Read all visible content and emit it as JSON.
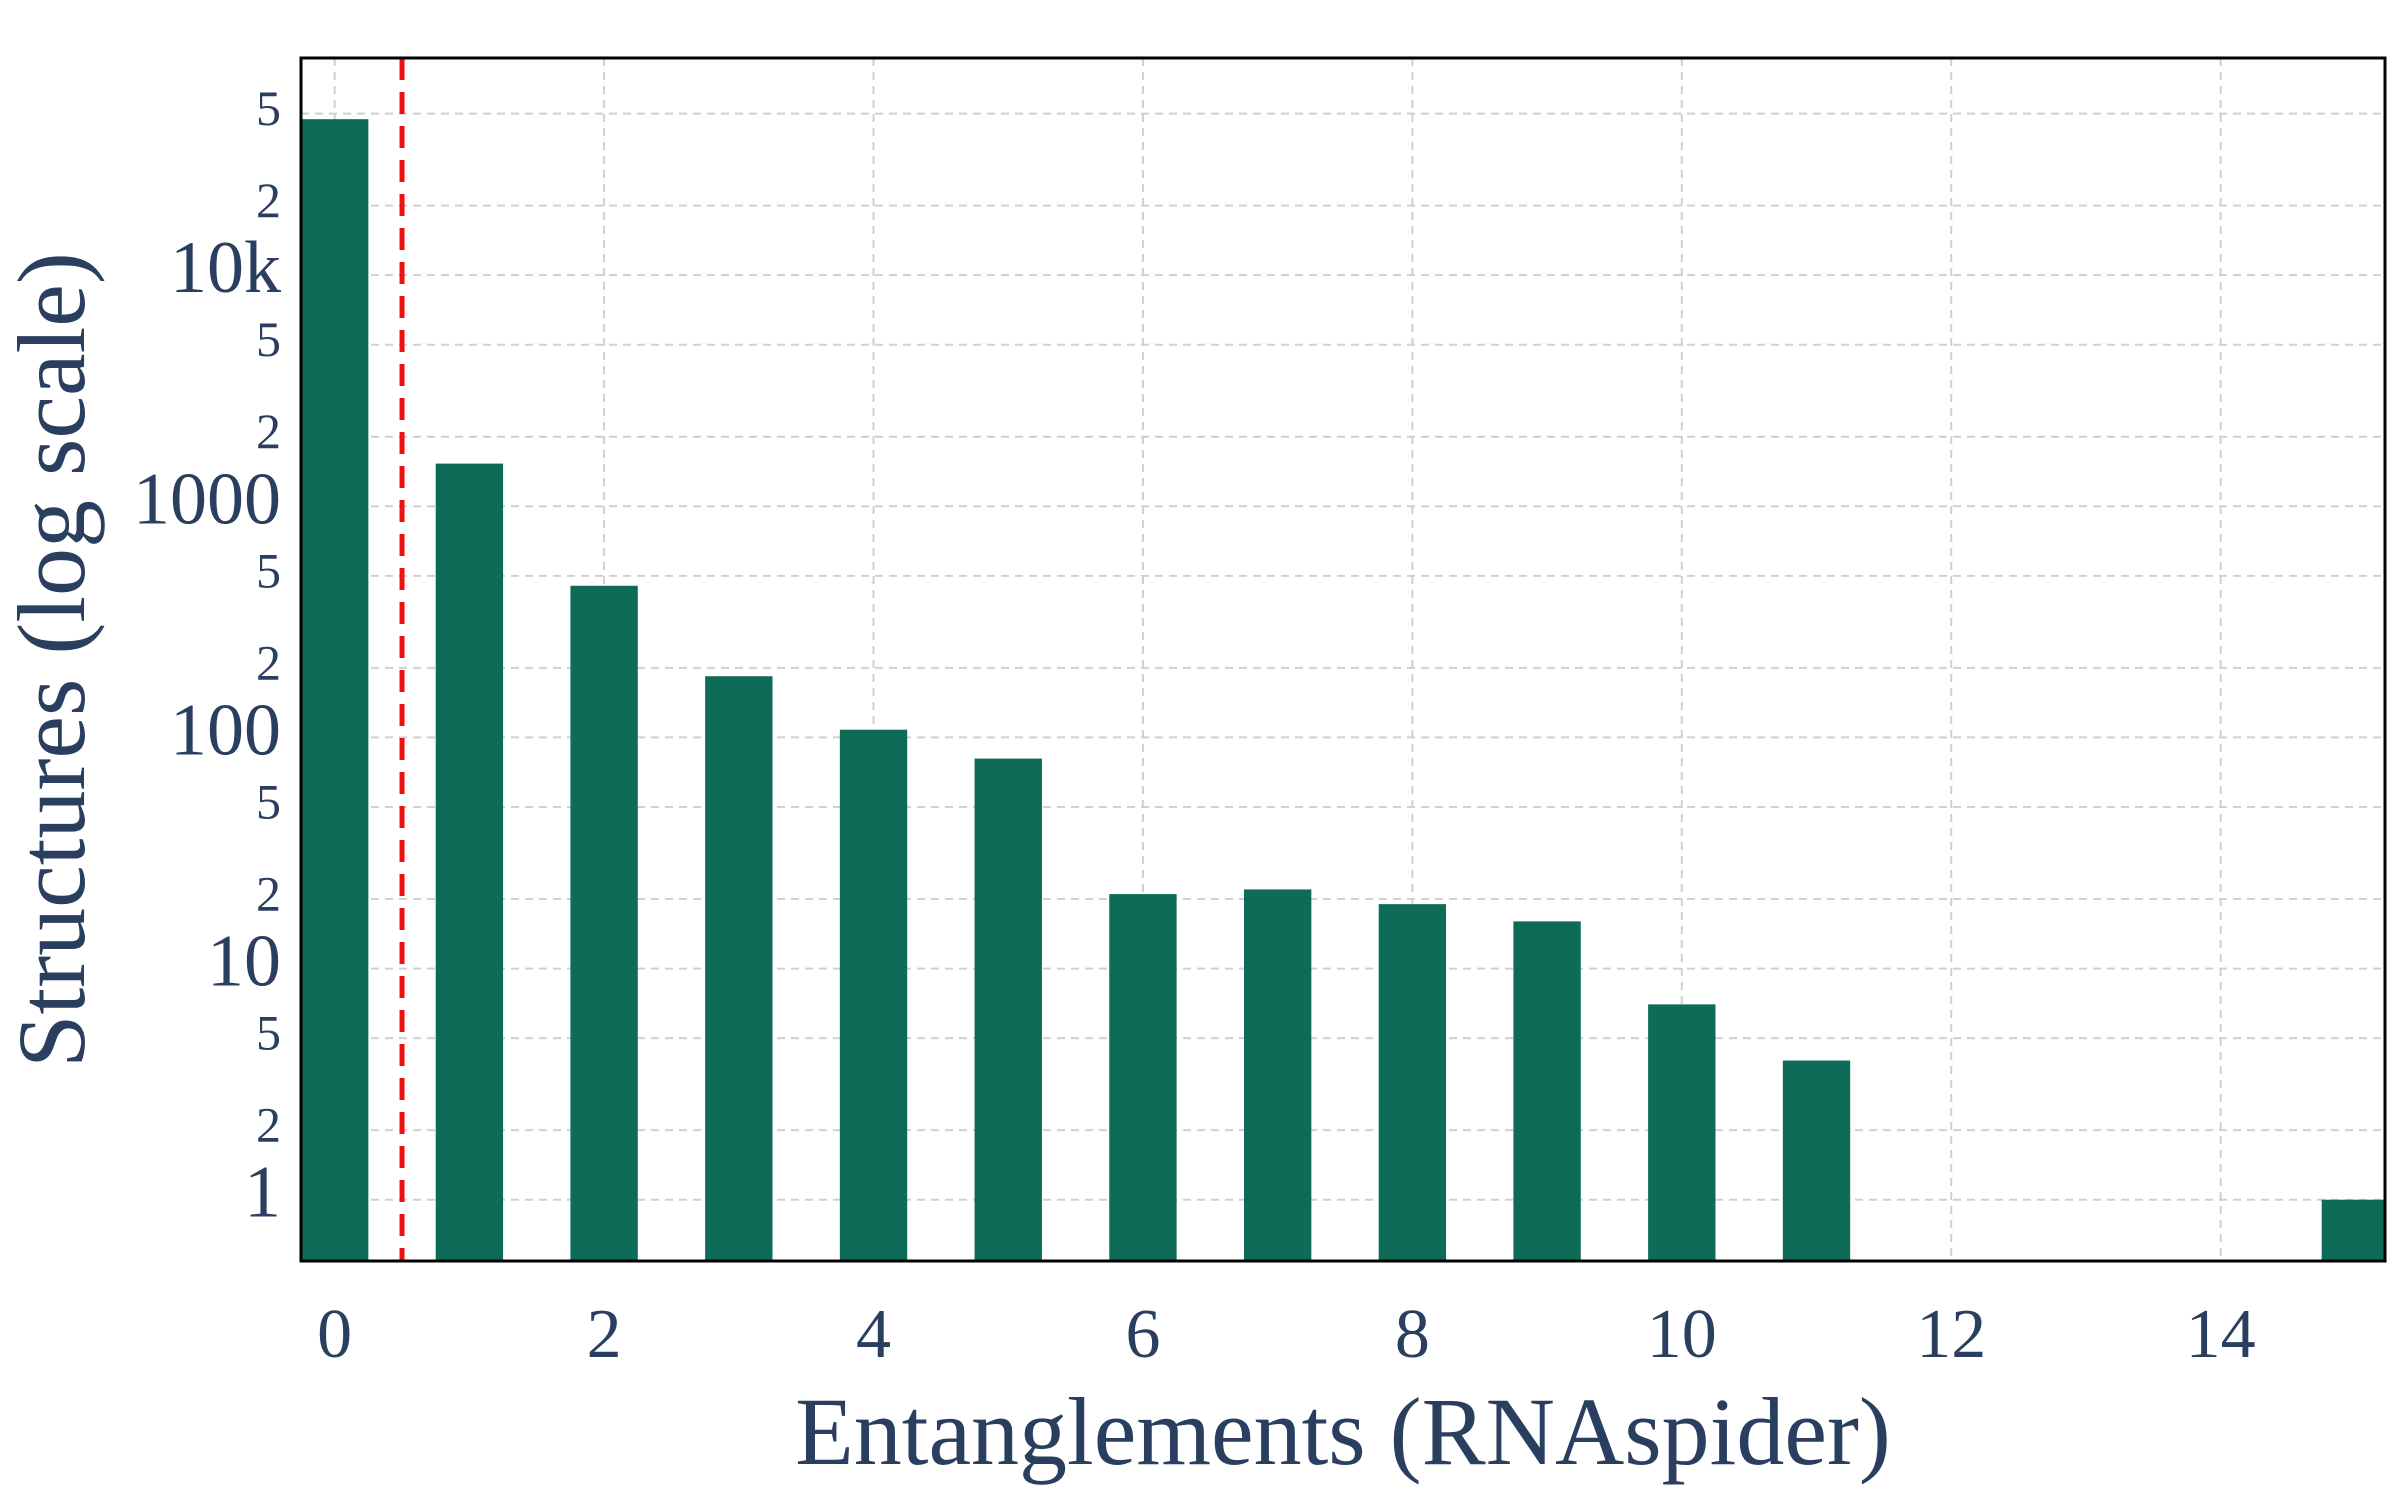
{
  "chart_data": {
    "type": "bar",
    "x_label": "Entanglements (RNAspider)",
    "y_label": "Structures (log scale)",
    "x": [
      0,
      1,
      2,
      3,
      4,
      5,
      6,
      7,
      8,
      9,
      10,
      11,
      15
    ],
    "values": [
      47300,
      1530,
      453,
      184,
      108,
      81,
      21,
      22,
      19,
      16,
      7,
      4,
      1
    ],
    "color": "#0d6b57",
    "log_y": true,
    "grid": true,
    "xlim": [
      -0.25,
      15.22
    ],
    "xticks": [
      0,
      2,
      4,
      6,
      8,
      10,
      12,
      14
    ],
    "ylim": [
      0.543,
      87000
    ],
    "yticks": [
      1,
      2,
      5,
      10,
      {
        "value": 20,
        "label": "2"
      },
      {
        "value": 50,
        "label": "5"
      },
      100,
      {
        "value": 200,
        "label": "2"
      },
      {
        "value": 500,
        "label": "5"
      },
      1000,
      {
        "value": 2000,
        "label": "2"
      },
      {
        "value": 5000,
        "label": "5"
      },
      {
        "value": 10000,
        "label": "10k"
      },
      {
        "value": 20000,
        "label": "2"
      },
      {
        "value": 50000,
        "label": "5"
      }
    ],
    "vline": {
      "x": 0.5,
      "color": "#ee1111"
    }
  }
}
